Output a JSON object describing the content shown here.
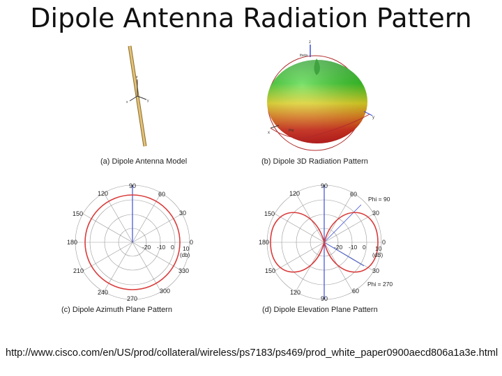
{
  "slide": {
    "title": "Dipole Antenna Radiation Pattern",
    "url": "http://www.cisco.com/en/US/prod/collateral/wireless/ps7183/ps469/prod_white_paper0900aecd806a1a3e.html"
  },
  "panels": {
    "a": {
      "caption": "(a) Dipole Antenna Model",
      "axes": [
        "z",
        "y",
        "x"
      ]
    },
    "b": {
      "caption": "(b) Dipole 3D Radiation Pattern",
      "axes": [
        "z",
        "y",
        "x"
      ],
      "labels": [
        "theta",
        "Phi"
      ]
    },
    "c": {
      "caption": "(c) Dipole Azimuth Plane Pattern",
      "angle_labels": [
        "90",
        "60",
        "30",
        "0",
        "330",
        "300",
        "270",
        "240",
        "210",
        "180",
        "150",
        "120"
      ],
      "ring_labels": [
        "-20",
        "-10",
        "0",
        "10"
      ],
      "unit": "(db)"
    },
    "d": {
      "caption": "(d) Dipole Elevation Plane Pattern",
      "angle_labels": [
        "90",
        "60",
        "30",
        "0",
        "30",
        "60",
        "90",
        "120",
        "150",
        "180",
        "150",
        "120"
      ],
      "ring_labels": [
        "-20",
        "-10",
        "0",
        "10"
      ],
      "unit": "(dB)",
      "phi_top": "Phi = 90",
      "phi_bottom": "Phi = 270"
    }
  },
  "colors": {
    "pattern": "#d93b3b",
    "axis_blue": "#3b4fd9",
    "grid": "#9a9a9a",
    "rod": "#e2c27a"
  }
}
